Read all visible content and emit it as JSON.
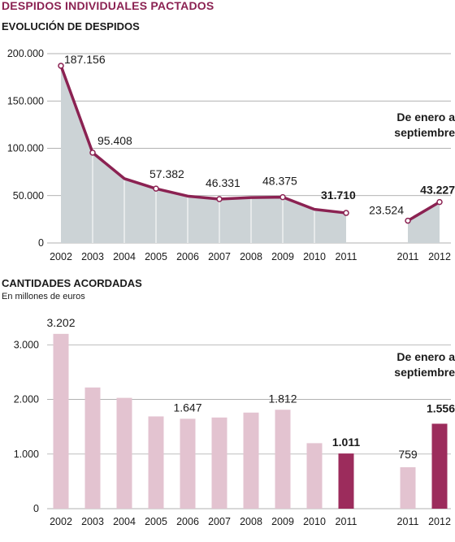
{
  "header": {
    "title": "DESPIDOS INDIVIDUALES PACTADOS"
  },
  "chart_data": [
    {
      "type": "area",
      "title": "EVOLUCIÓN DE DESPIDOS",
      "subtitle": "",
      "ylim": [
        0,
        200000
      ],
      "yticks": [
        {
          "value": 0,
          "label": "0"
        },
        {
          "value": 50000,
          "label": "50.000"
        },
        {
          "value": 100000,
          "label": "100.000"
        },
        {
          "value": 150000,
          "label": "150.000"
        },
        {
          "value": 200000,
          "label": "200.000"
        }
      ],
      "categories": [
        "2002",
        "2003",
        "2004",
        "2005",
        "2006",
        "2007",
        "2008",
        "2009",
        "2010",
        "2011"
      ],
      "values": [
        187156,
        95408,
        68000,
        57382,
        49500,
        46331,
        48000,
        48375,
        35500,
        31710
      ],
      "labels": [
        "187.156",
        "95.408",
        "",
        "57.382",
        "",
        "46.331",
        "",
        "48.375",
        "",
        "31.710"
      ],
      "inset": {
        "label_line1": "De enero a",
        "label_line2": "septiembre",
        "categories": [
          "2011",
          "2012"
        ],
        "values": [
          23524,
          43227
        ],
        "labels": [
          "23.524",
          "43.227"
        ]
      },
      "colors": {
        "line": "#8b2252",
        "area": "#ccd3d6",
        "grid": "#999999"
      },
      "grid": true
    },
    {
      "type": "bar",
      "title": "CANTIDADES ACORDADAS",
      "subtitle": "En millones de euros",
      "ylim": [
        0,
        3200
      ],
      "yticks": [
        {
          "value": 0,
          "label": "0"
        },
        {
          "value": 1000,
          "label": "1.000"
        },
        {
          "value": 2000,
          "label": "2.000"
        },
        {
          "value": 3000,
          "label": "3.000"
        }
      ],
      "categories": [
        "2002",
        "2003",
        "2004",
        "2005",
        "2006",
        "2007",
        "2008",
        "2009",
        "2010",
        "2011"
      ],
      "values": [
        3202,
        2220,
        2030,
        1690,
        1647,
        1670,
        1760,
        1812,
        1200,
        1011
      ],
      "labels": [
        "3.202",
        "",
        "",
        "",
        "1.647",
        "",
        "",
        "1.812",
        "",
        "1.011"
      ],
      "inset": {
        "label_line1": "De enero a",
        "label_line2": "septiembre",
        "categories": [
          "2011",
          "2012"
        ],
        "values": [
          759,
          1556
        ],
        "labels": [
          "759",
          "1.556"
        ]
      },
      "colors": {
        "bar": "#e3c3d0",
        "highlight": "#9c2c5c",
        "grid": "#999999"
      },
      "grid": true
    }
  ]
}
